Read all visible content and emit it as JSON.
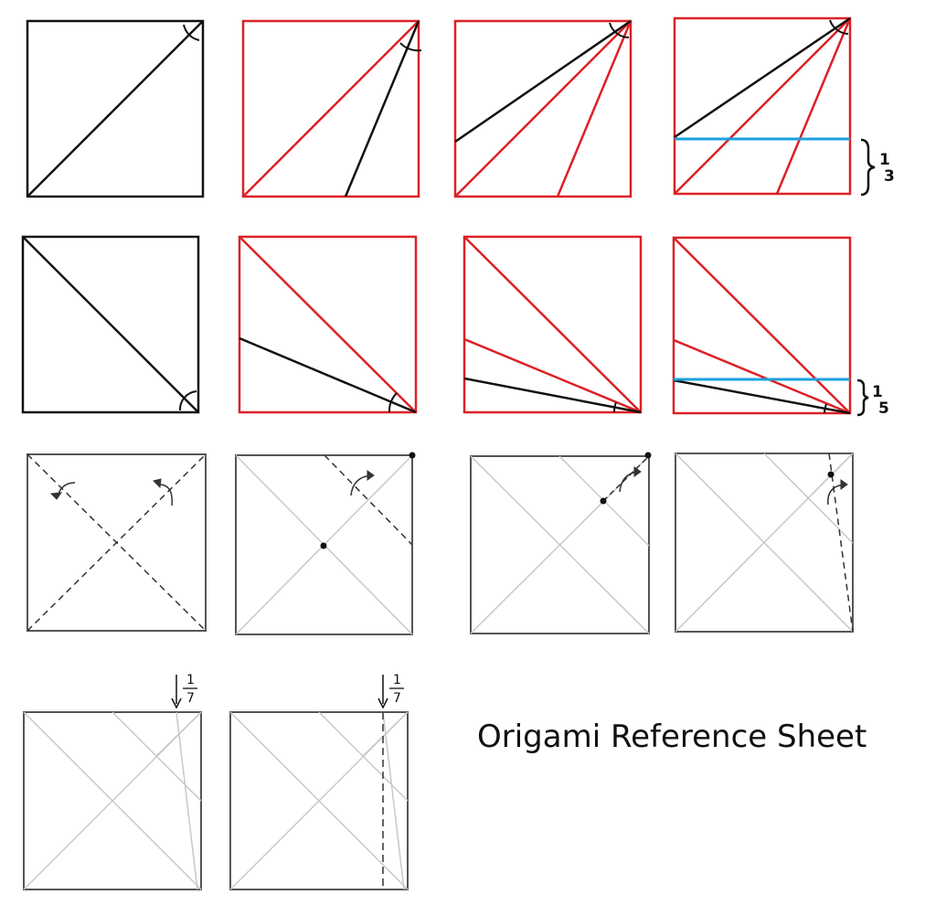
{
  "title": "Origami Reference Sheet",
  "labels": {
    "third": {
      "numerator": "1",
      "denominator": "3"
    },
    "fifth": {
      "numerator": "1",
      "denominator": "5"
    },
    "seventh": {
      "numerator": "1",
      "denominator": "7"
    }
  },
  "colors": {
    "ink": "#111111",
    "red": "#dd2026",
    "blue": "#1aa1dc",
    "crease": "#c8c8c8",
    "frame": "#555555"
  }
}
